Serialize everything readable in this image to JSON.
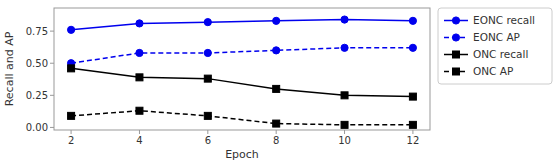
{
  "chart_data": {
    "type": "line",
    "x_label": "Epoch",
    "y_label": "Recall and AP",
    "x": [
      2,
      4,
      6,
      8,
      10,
      12
    ],
    "series": [
      {
        "name": "EONC recall",
        "color": "#0000ee",
        "marker": "circle",
        "line_style": "solid",
        "values": [
          0.76,
          0.81,
          0.82,
          0.83,
          0.84,
          0.83
        ]
      },
      {
        "name": "EONC AP",
        "color": "#0000ee",
        "marker": "circle",
        "line_style": "dashed",
        "values": [
          0.5,
          0.58,
          0.58,
          0.6,
          0.62,
          0.62
        ]
      },
      {
        "name": "ONC recall",
        "color": "#000000",
        "marker": "square",
        "line_style": "solid",
        "values": [
          0.46,
          0.39,
          0.38,
          0.3,
          0.25,
          0.24
        ]
      },
      {
        "name": "ONC AP",
        "color": "#000000",
        "marker": "square",
        "line_style": "dashed",
        "values": [
          0.09,
          0.13,
          0.09,
          0.03,
          0.02,
          0.02
        ]
      }
    ],
    "xlim": [
      1.5,
      12.5
    ],
    "ylim": [
      -0.02,
      0.93
    ],
    "xticks": [
      2,
      4,
      6,
      8,
      10,
      12
    ],
    "yticks": [
      {
        "value": 0.0,
        "label": "0.00"
      },
      0.25,
      {
        "value": 0.5,
        "label": "0.50"
      },
      0.75
    ],
    "grid": false,
    "legend": "right"
  }
}
